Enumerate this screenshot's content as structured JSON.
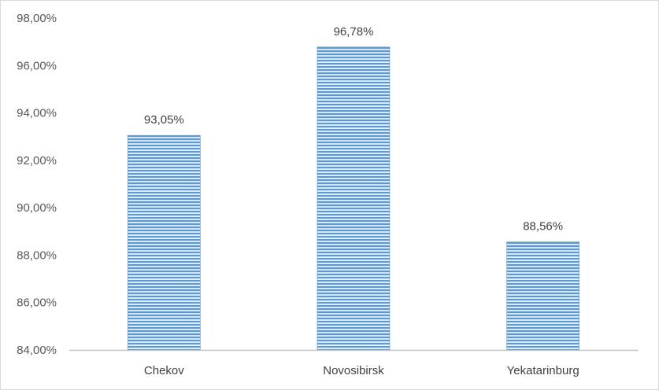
{
  "chart_data": {
    "type": "bar",
    "categories": [
      "Chekov",
      "Novosibirsk",
      "Yekatarinburg"
    ],
    "values": [
      93.05,
      96.78,
      88.56
    ],
    "data_labels": [
      "93,05%",
      "96,78%",
      "88,56%"
    ],
    "ylim": [
      84,
      98
    ],
    "y_ticks": [
      84,
      86,
      88,
      90,
      92,
      94,
      96,
      98
    ],
    "y_tick_labels": [
      "84,00%",
      "86,00%",
      "88,00%",
      "90,00%",
      "92,00%",
      "94,00%",
      "96,00%",
      "98,00%"
    ],
    "grid": false,
    "legend": "none",
    "bar_color": "#5b9bd5",
    "bar_fill": "horizontal-stripes",
    "axis_color": "#bfbfbf"
  }
}
